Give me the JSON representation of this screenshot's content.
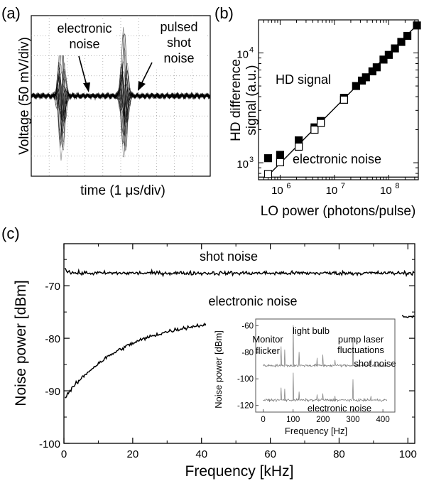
{
  "figure": {
    "panels": [
      {
        "letter": "(a)"
      },
      {
        "letter": "(b)"
      },
      {
        "letter": "(c)"
      }
    ]
  },
  "chart_data": [
    {
      "panel": "(a)",
      "type": "line",
      "xlabel": "time (1 μs/div)",
      "ylabel": "Voltage (50 mV/div)",
      "grid": true,
      "x_divisions": 10,
      "y_divisions": 8,
      "pulse_centers_div": [
        1.7,
        5.2
      ],
      "baseline_div": 0,
      "pulse_peak_div": 3.6,
      "annotations": [
        "electronic",
        "noise",
        "pulsed",
        "shot",
        "noise"
      ],
      "trace_color": "#000000"
    },
    {
      "panel": "(b)",
      "type": "scatter",
      "xscale": "log",
      "yscale": "log",
      "xlim": [
        400000,
        350000000
      ],
      "ylim": [
        700,
        20000
      ],
      "xlabel": "LO power (photons/pulse)",
      "ylabel_lines": [
        "HD difference",
        "signal (a.u.)"
      ],
      "xticks": [
        {
          "base": "10",
          "exp": "6",
          "value": 1000000
        },
        {
          "base": "10",
          "exp": "7",
          "value": 10000000
        },
        {
          "base": "10",
          "exp": "8",
          "value": 100000000
        }
      ],
      "yticks": [
        {
          "base": "10",
          "exp": "3",
          "value": 1000
        },
        {
          "base": "10",
          "exp": "4",
          "value": 10000
        }
      ],
      "series": [
        {
          "marker": "filled-square",
          "x": [
            600000,
            1000000,
            2200000,
            4300000,
            5600000,
            15000000,
            25000000,
            32000000,
            38000000,
            50000000,
            60000000,
            80000000,
            100000000,
            130000000,
            170000000,
            220000000,
            330000000
          ],
          "y": [
            1100,
            1180,
            1600,
            2100,
            2400,
            3900,
            5000,
            5600,
            6000,
            6800,
            7400,
            8700,
            9600,
            11000,
            12600,
            14300,
            17800
          ]
        },
        {
          "marker": "open-square",
          "x": [
            600000,
            1000000,
            2200000,
            4300000,
            5600000,
            15000000
          ],
          "y": [
            790,
            1010,
            1400,
            2000,
            2300,
            3750
          ]
        }
      ],
      "fit_line": {
        "x": [
          560000,
          350000000
        ],
        "y": [
          740,
          18500
        ]
      },
      "electronic_noise_level": 740,
      "annotations": [
        "HD signal",
        "electronic  noise"
      ]
    },
    {
      "panel": "(c)",
      "type": "line",
      "xlabel": "Frequency [kHz]",
      "ylabel": "Noise power [dBm]",
      "xlim": [
        0,
        102
      ],
      "ylim": [
        -100,
        -62
      ],
      "xticks": [
        0,
        20,
        40,
        60,
        80,
        100
      ],
      "yticks": [
        -100,
        -90,
        -80,
        -70
      ],
      "series": [
        {
          "label": "shot noise",
          "curve": "flat",
          "level_dbm": -67.6,
          "start_dbm": -66.0
        },
        {
          "label": "electronic noise",
          "curve": "rising-saturating",
          "start_dbm": -91.5,
          "plateau_dbm": -75.8,
          "time_constant_khz": 18
        }
      ],
      "inset": {
        "xlabel": "Frequency [Hz]",
        "ylabel": "Noise power [dBm]",
        "xlim": [
          -25,
          440
        ],
        "ylim": [
          -125,
          -55
        ],
        "xticks": [
          0,
          100,
          200,
          300,
          400
        ],
        "yticks": [
          -120,
          -100,
          -80,
          -60
        ],
        "traces": [
          {
            "label": "shot noise",
            "level_dbm": -90
          },
          {
            "label": "electronic noise",
            "level_dbm": -116
          }
        ],
        "spikes_hz": [
          60,
          72,
          100,
          120,
          180,
          200,
          240,
          300,
          360
        ],
        "annotations": [
          "Monitor",
          "flicker",
          "light bulb",
          "pump laser",
          "fluctuations"
        ]
      }
    }
  ]
}
